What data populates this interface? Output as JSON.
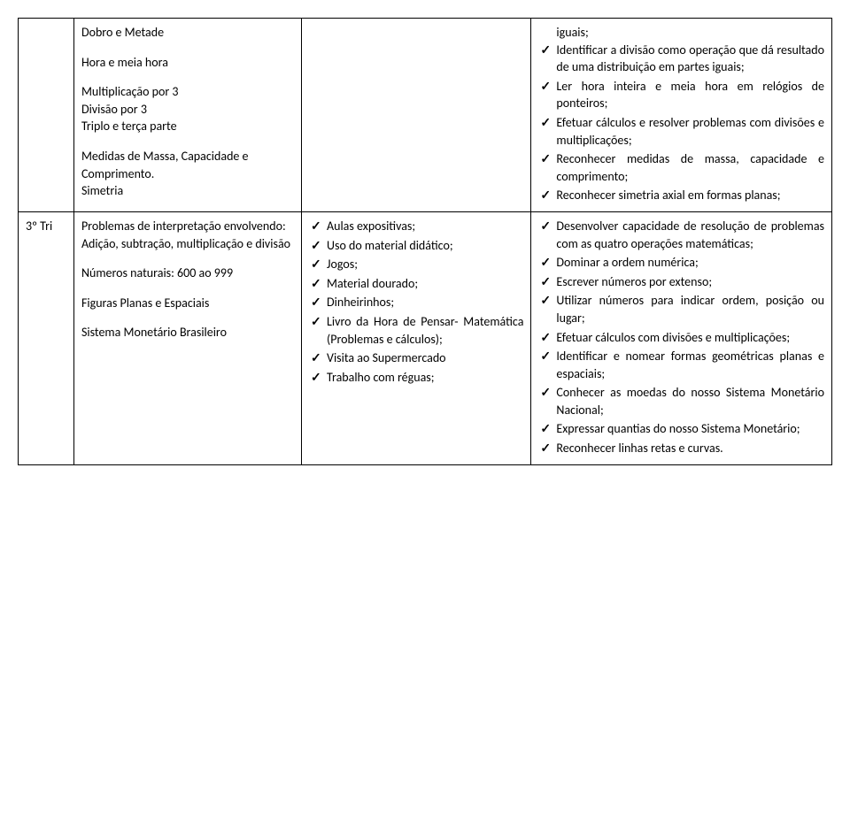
{
  "row1": {
    "col1": "",
    "col2_items": [
      "Dobro e Metade",
      "Hora e meia hora",
      "Multiplicação por 3\nDivisão por 3\nTriplo e terça parte",
      "Medidas de Massa, Capacidade e Comprimento.\nSimetria"
    ],
    "col3": "",
    "col4_items": [
      "iguais;",
      "Identificar a divisão como operação que dá resultado de uma distribuição em partes iguais;",
      "Ler hora inteira e meia hora em relógios de ponteiros;",
      "Efetuar cálculos e resolver problemas com divisões e multiplicações;",
      "Reconhecer medidas de massa, capacidade e comprimento;",
      "Reconhecer simetria axial em formas planas;"
    ]
  },
  "row2": {
    "col1": "3º Tri",
    "col2_items": [
      "Problemas de interpretação envolvendo:\nAdição, subtração, multiplicação e divisão",
      "Números naturais: 600 ao 999",
      "Figuras Planas e Espaciais",
      "Sistema Monetário Brasileiro"
    ],
    "col3_items": [
      "Aulas expositivas;",
      "Uso do material didático;",
      "Jogos;",
      "Material dourado;",
      "Dinheirinhos;",
      "Livro da Hora de Pensar- Matemática (Problemas e cálculos);",
      "Visita ao Supermercado",
      "Trabalho com réguas;"
    ],
    "col4_items": [
      "Desenvolver capacidade de resolução de problemas com as quatro operações matemáticas;",
      "Dominar a ordem numérica;",
      "Escrever números por extenso;",
      "Utilizar números para indicar ordem, posição ou lugar;",
      "Efetuar cálculos com divisões e multiplicações;",
      "Identificar e nomear formas geométricas planas e espaciais;",
      "Conhecer as moedas do nosso Sistema Monetário Nacional;",
      "Expressar quantias do nosso Sistema Monetário;",
      "Reconhecer linhas retas e curvas."
    ]
  }
}
